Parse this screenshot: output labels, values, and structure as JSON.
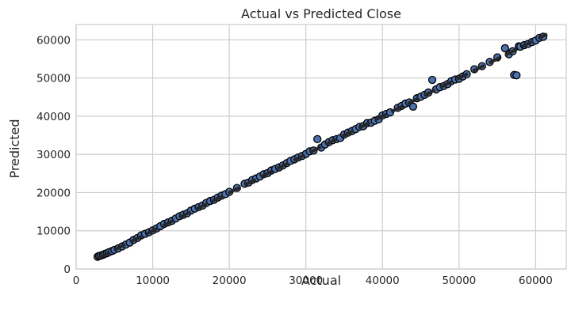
{
  "chart_data": {
    "type": "scatter",
    "title": "Actual vs Predicted Close",
    "xlabel": "Actual",
    "ylabel": "Predicted",
    "xlim": [
      0,
      64000
    ],
    "ylim": [
      0,
      64000
    ],
    "x_ticks": [
      0,
      10000,
      20000,
      30000,
      40000,
      50000,
      60000
    ],
    "y_ticks": [
      0,
      10000,
      20000,
      30000,
      40000,
      50000,
      60000
    ],
    "x_tick_labels": [
      "0",
      "10000",
      "20000",
      "30000",
      "40000",
      "50000",
      "60000"
    ],
    "y_tick_labels": [
      "0",
      "10000",
      "20000",
      "30000",
      "40000",
      "50000",
      "60000"
    ],
    "grid": true,
    "point_color": "#4c72b0",
    "point_edge_color": "#000000",
    "line_color": "#262626",
    "reference_line": {
      "style": "dashed",
      "from": [
        2800,
        2800
      ],
      "to": [
        61500,
        61500
      ]
    },
    "points": [
      [
        2800,
        3200
      ],
      [
        3000,
        3400
      ],
      [
        3200,
        3500
      ],
      [
        3500,
        3700
      ],
      [
        3700,
        3900
      ],
      [
        4000,
        4100
      ],
      [
        4300,
        4400
      ],
      [
        4700,
        4700
      ],
      [
        5000,
        5000
      ],
      [
        5500,
        5400
      ],
      [
        6000,
        5900
      ],
      [
        6500,
        6400
      ],
      [
        7000,
        6900
      ],
      [
        7500,
        7600
      ],
      [
        8000,
        8100
      ],
      [
        8500,
        8800
      ],
      [
        9000,
        9200
      ],
      [
        9500,
        9600
      ],
      [
        10000,
        10100
      ],
      [
        10500,
        10600
      ],
      [
        11000,
        11200
      ],
      [
        11500,
        11800
      ],
      [
        12000,
        12200
      ],
      [
        12500,
        12600
      ],
      [
        13000,
        13200
      ],
      [
        13500,
        13800
      ],
      [
        14000,
        14200
      ],
      [
        14500,
        14600
      ],
      [
        15000,
        15300
      ],
      [
        15500,
        15800
      ],
      [
        16000,
        16200
      ],
      [
        16500,
        16600
      ],
      [
        17000,
        17300
      ],
      [
        17500,
        17800
      ],
      [
        18000,
        18100
      ],
      [
        18500,
        18700
      ],
      [
        19000,
        19200
      ],
      [
        19500,
        19600
      ],
      [
        20000,
        20200
      ],
      [
        21000,
        21200
      ],
      [
        22000,
        22300
      ],
      [
        22500,
        22600
      ],
      [
        23000,
        23300
      ],
      [
        23500,
        23700
      ],
      [
        24000,
        24200
      ],
      [
        24500,
        24800
      ],
      [
        25000,
        25100
      ],
      [
        25500,
        25800
      ],
      [
        26000,
        26200
      ],
      [
        26500,
        26600
      ],
      [
        27000,
        27100
      ],
      [
        27500,
        27700
      ],
      [
        28000,
        28300
      ],
      [
        28500,
        28700
      ],
      [
        29000,
        29200
      ],
      [
        29500,
        29600
      ],
      [
        30000,
        30100
      ],
      [
        30500,
        30800
      ],
      [
        31000,
        31000
      ],
      [
        31500,
        34000
      ],
      [
        32000,
        31800
      ],
      [
        32500,
        32600
      ],
      [
        33000,
        33200
      ],
      [
        33500,
        33700
      ],
      [
        34000,
        34000
      ],
      [
        34500,
        34300
      ],
      [
        35000,
        35200
      ],
      [
        35500,
        35700
      ],
      [
        36000,
        36100
      ],
      [
        36500,
        36600
      ],
      [
        37000,
        37200
      ],
      [
        37500,
        37400
      ],
      [
        38000,
        38200
      ],
      [
        38500,
        38300
      ],
      [
        39000,
        38800
      ],
      [
        39500,
        39200
      ],
      [
        40000,
        40200
      ],
      [
        40500,
        40600
      ],
      [
        41000,
        41000
      ],
      [
        42000,
        42200
      ],
      [
        42500,
        42700
      ],
      [
        43000,
        43300
      ],
      [
        43500,
        43600
      ],
      [
        44000,
        42500
      ],
      [
        44500,
        44700
      ],
      [
        45000,
        45100
      ],
      [
        45500,
        45600
      ],
      [
        46000,
        46200
      ],
      [
        46500,
        49500
      ],
      [
        47000,
        47000
      ],
      [
        47500,
        47600
      ],
      [
        48000,
        47900
      ],
      [
        48500,
        48400
      ],
      [
        49000,
        49200
      ],
      [
        49500,
        49600
      ],
      [
        50000,
        49800
      ],
      [
        50500,
        50400
      ],
      [
        51000,
        51000
      ],
      [
        52000,
        52300
      ],
      [
        53000,
        53100
      ],
      [
        54000,
        54200
      ],
      [
        55000,
        55400
      ],
      [
        56000,
        57800
      ],
      [
        56500,
        56200
      ],
      [
        57000,
        57000
      ],
      [
        57200,
        50800
      ],
      [
        57500,
        50700
      ],
      [
        57800,
        58300
      ],
      [
        58000,
        58200
      ],
      [
        58500,
        58600
      ],
      [
        59000,
        58900
      ],
      [
        59500,
        59400
      ],
      [
        60000,
        59800
      ],
      [
        60500,
        60500
      ],
      [
        61000,
        60800
      ]
    ]
  }
}
